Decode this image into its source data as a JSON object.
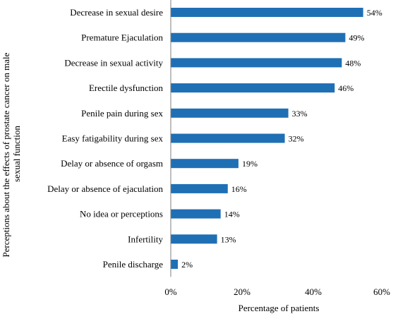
{
  "chart_data": {
    "type": "bar",
    "orientation": "horizontal",
    "categories": [
      "Decrease in sexual desire",
      "Premature Ejaculation",
      "Decrease in sexual activity",
      "Erectile dysfunction",
      "Penile pain during sex",
      "Easy fatigability during sex",
      "Delay or absence of orgasm",
      "Delay or absence of ejaculation",
      "No idea or perceptions",
      "Infertility",
      "Penile discharge"
    ],
    "values": [
      54,
      49,
      48,
      46,
      33,
      32,
      19,
      16,
      14,
      13,
      2
    ],
    "data_labels": [
      "54%",
      "49%",
      "48%",
      "46%",
      "33%",
      "32%",
      "19%",
      "16%",
      "14%",
      "13%",
      "2%"
    ],
    "xlim": [
      0,
      60
    ],
    "xticks": [
      0,
      20,
      40,
      60
    ],
    "xtick_labels": [
      "0%",
      "20%",
      "40%",
      "60%"
    ],
    "xlabel": "Percentage of patients",
    "ylabel_lines": [
      "Perceptions about the effects of prostate cancer on male",
      "sexual function"
    ],
    "bar_color": "#1f6fb5",
    "grid": false,
    "legend": "none"
  }
}
